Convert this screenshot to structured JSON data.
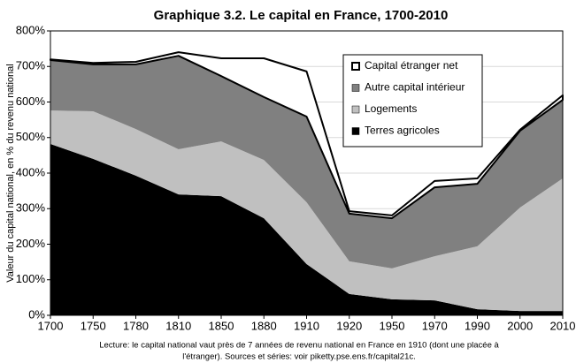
{
  "chart_data": {
    "type": "stacked_area",
    "title": "Graphique 3.2. Le capital en France, 1700-2010",
    "y_label": "Valeur du capital national, en % du revenu national",
    "notes": [
      "Lecture: le capital national vaut près de 7 années de revenu national en France en 1910 (dont une placée à",
      "l'étranger). Sources et séries: voir piketty.pse.ens.fr/capital21c."
    ],
    "categories": [
      "1700",
      "1750",
      "1780",
      "1810",
      "1850",
      "1880",
      "1910",
      "1920",
      "1950",
      "1970",
      "1990",
      "2000",
      "2010"
    ],
    "series": [
      {
        "name": "Terres agricoles",
        "color": "#000000",
        "values": [
          482,
          440,
          393,
          340,
          335,
          273,
          144,
          60,
          45,
          42,
          17,
          12,
          12
        ]
      },
      {
        "name": "Logements",
        "color": "#c0c0c0",
        "values": [
          94,
          134,
          131,
          127,
          154,
          164,
          174,
          92,
          87,
          124,
          177,
          291,
          373
        ]
      },
      {
        "name": "Autre capital intérieur",
        "color": "#808080",
        "values": [
          142,
          132,
          182,
          263,
          184,
          177,
          241,
          134,
          141,
          194,
          176,
          216,
          221
        ]
      },
      {
        "name": "Capital étranger net",
        "color": "#ffffff",
        "values": [
          2,
          4,
          7,
          10,
          50,
          109,
          127,
          7,
          8,
          18,
          15,
          3,
          13
        ]
      }
    ],
    "ylim": [
      0,
      800
    ],
    "yticks": [
      {
        "value": 0,
        "label": "0%"
      },
      {
        "value": 100,
        "label": "100%"
      },
      {
        "value": 200,
        "label": "200%"
      },
      {
        "value": 300,
        "label": "300%"
      },
      {
        "value": 400,
        "label": "400%"
      },
      {
        "value": 500,
        "label": "500%"
      },
      {
        "value": 600,
        "label": "600%"
      },
      {
        "value": 700,
        "label": "700%"
      },
      {
        "value": 800,
        "label": "800%"
      }
    ],
    "grid": true,
    "legend": "upper right"
  }
}
